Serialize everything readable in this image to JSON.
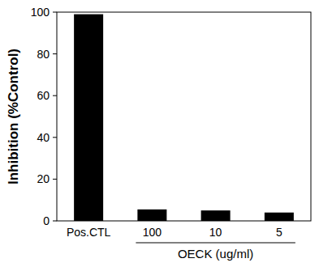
{
  "chart_data": {
    "type": "bar",
    "y_label": "Inhibition (%Control)",
    "x_label": "OECK (ug/ml)",
    "categories": [
      "Pos.CTL",
      "100",
      "10",
      "5"
    ],
    "values": [
      99,
      5.5,
      5,
      4
    ],
    "color": "#000000",
    "ylim": [
      0,
      100
    ],
    "yticks": [
      0,
      20,
      40,
      60,
      80,
      100
    ],
    "grid": false
  }
}
